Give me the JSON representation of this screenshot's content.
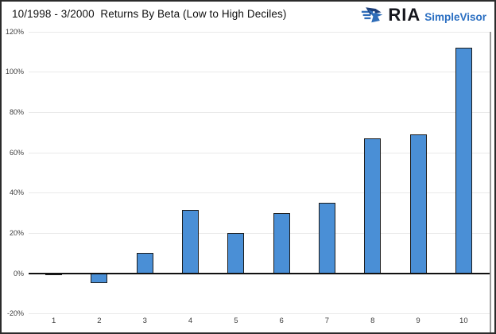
{
  "header": {
    "title": "10/1998 - 3/2000  Returns By Beta (Low to High Deciles)",
    "logo": {
      "brand": "RIA",
      "product": "SimpleVisor",
      "icon": "eagle-icon"
    }
  },
  "chart_data": {
    "type": "bar",
    "title": "10/1998 - 3/2000  Returns By Beta (Low to High Deciles)",
    "categories": [
      "1",
      "2",
      "3",
      "4",
      "5",
      "6",
      "7",
      "8",
      "9",
      "10"
    ],
    "values": [
      -1,
      -5,
      10,
      31.5,
      20,
      30,
      35,
      67,
      69,
      112
    ],
    "unit": "%",
    "xlabel": "",
    "ylabel": "",
    "ylim": [
      -20,
      120
    ],
    "ytick_step": 20,
    "ytick_labels": [
      "120%",
      "100%",
      "80%",
      "60%",
      "40%",
      "20%",
      "0%",
      "-20%"
    ],
    "grid": true,
    "legend": "none",
    "bar_color": "#4a8fd6",
    "bar_border_color": "#1c1c1c",
    "gridline_color": "#e9e9e9",
    "axis_color": "#111111",
    "tick_text_color": "#3d3d3d"
  },
  "colors": {
    "frame_border": "#2b2b2b",
    "brand_navy": "#15161d",
    "brand_blue": "#2b6fc2",
    "background": "#ffffff"
  }
}
